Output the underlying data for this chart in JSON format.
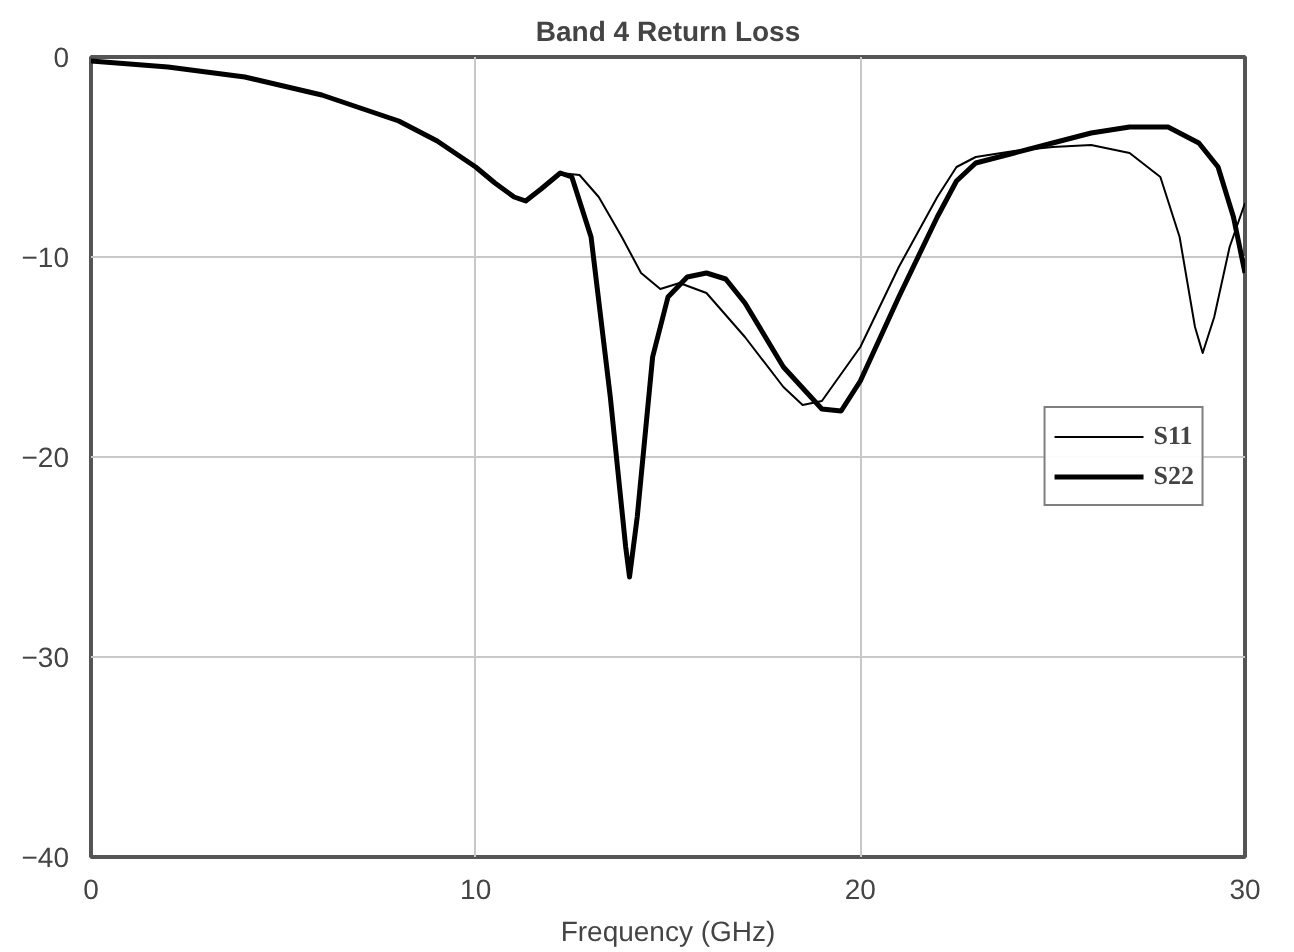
{
  "chart_data": {
    "type": "line",
    "title": "Band 4 Return Loss",
    "xlabel": "Frequency (GHz)",
    "xlim": [
      0,
      30
    ],
    "xticks": [
      0,
      10,
      20,
      30
    ],
    "ylim": [
      -40,
      0
    ],
    "yticks": [
      -40,
      -30,
      -20,
      -10,
      0
    ],
    "grid": true,
    "legend": "right",
    "marker": "none",
    "line_style": "solid",
    "series": [
      {
        "name": "S11",
        "color": "#000000",
        "x": [
          0,
          2,
          4,
          6,
          8,
          9,
          10,
          10.5,
          11,
          11.3,
          11.7,
          12.2,
          12.7,
          13.2,
          13.8,
          14.3,
          14.8,
          15.3,
          16,
          17,
          18,
          18.5,
          19,
          20,
          21,
          22,
          22.5,
          23,
          24,
          25,
          26,
          27,
          27.8,
          28.3,
          28.7,
          28.9,
          29.2,
          29.6,
          30
        ],
        "values": [
          -0.2,
          -0.5,
          -1.0,
          -1.9,
          -3.2,
          -4.2,
          -5.5,
          -6.3,
          -7.0,
          -7.2,
          -6.6,
          -5.8,
          -5.9,
          -7.0,
          -9.0,
          -10.8,
          -11.6,
          -11.3,
          -11.8,
          -14.0,
          -16.5,
          -17.4,
          -17.2,
          -14.5,
          -10.5,
          -7.0,
          -5.5,
          -5.0,
          -4.7,
          -4.5,
          -4.4,
          -4.8,
          -6.0,
          -9.0,
          -13.5,
          -14.8,
          -13.0,
          -9.5,
          -7.3
        ]
      },
      {
        "name": "S22",
        "color": "#000000",
        "x": [
          0,
          2,
          4,
          6,
          8,
          9,
          10,
          10.5,
          11,
          11.3,
          11.7,
          12.2,
          12.5,
          13,
          13.5,
          13.9,
          14.0,
          14.2,
          14.6,
          15,
          15.5,
          16,
          16.5,
          17,
          18,
          19,
          19.5,
          20,
          21,
          22,
          22.5,
          23,
          24,
          25,
          26,
          27,
          28,
          28.8,
          29.3,
          29.7,
          30
        ],
        "values": [
          -0.2,
          -0.5,
          -1.0,
          -1.9,
          -3.2,
          -4.2,
          -5.5,
          -6.3,
          -7.0,
          -7.2,
          -6.6,
          -5.8,
          -6.0,
          -9.0,
          -17.0,
          -24.5,
          -26.0,
          -23.0,
          -15.0,
          -12.0,
          -11.0,
          -10.8,
          -11.1,
          -12.3,
          -15.5,
          -17.6,
          -17.7,
          -16.2,
          -12.0,
          -8.0,
          -6.2,
          -5.3,
          -4.8,
          -4.3,
          -3.8,
          -3.5,
          -3.5,
          -4.3,
          -5.5,
          -8.0,
          -10.8
        ]
      }
    ]
  }
}
